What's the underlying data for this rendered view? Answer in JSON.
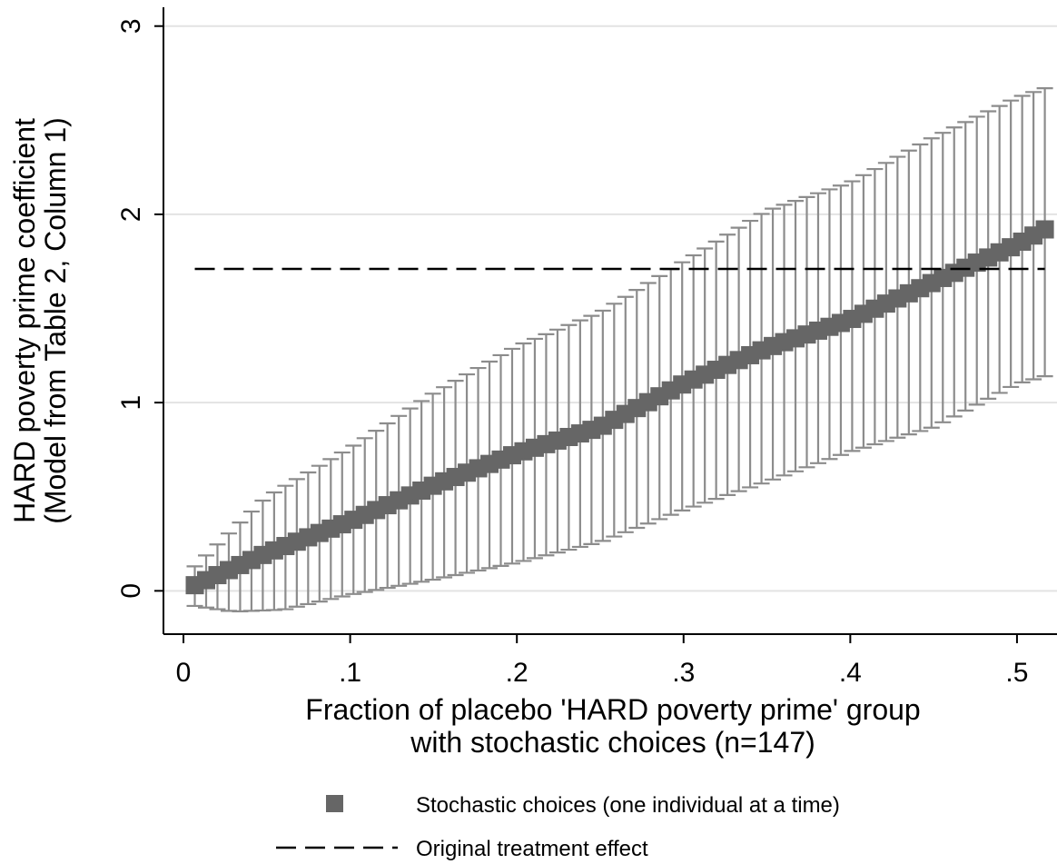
{
  "chart_data": {
    "type": "scatter",
    "xlabel": [
      "Fraction of placebo 'HARD poverty prime' group",
      "with stochastic choices (n=147)"
    ],
    "ylabel": [
      "HARD poverty prime coefficient",
      "(Model from Table 2, Column 1)"
    ],
    "xlim": [
      -0.012,
      0.524
    ],
    "ylim": [
      -0.23,
      3.1
    ],
    "x_ticks": [
      0,
      0.1,
      0.2,
      0.3,
      0.4,
      0.5
    ],
    "x_tick_labels": [
      "0",
      ".1",
      ".2",
      ".3",
      ".4",
      ".5"
    ],
    "y_ticks": [
      0,
      1,
      2,
      3
    ],
    "y_tick_labels": [
      "0",
      "1",
      "2",
      "3"
    ],
    "grid": "horizontal",
    "legend_position": "bottom",
    "n_points": 76,
    "x_start": 0.0068,
    "x_end": 0.5167,
    "series": [
      {
        "name": "Stochastic choices (one individual at a time)",
        "marker": "square",
        "color": "#666666",
        "error_bar_color": "#8c8c8c",
        "estimate_curve": [
          [
            0.0068,
            0.03
          ],
          [
            0.05,
            0.2
          ],
          [
            0.1,
            0.37
          ],
          [
            0.15,
            0.56
          ],
          [
            0.2,
            0.73
          ],
          [
            0.25,
            0.87
          ],
          [
            0.3,
            1.1
          ],
          [
            0.35,
            1.29
          ],
          [
            0.4,
            1.44
          ],
          [
            0.45,
            1.64
          ],
          [
            0.5,
            1.84
          ],
          [
            0.5167,
            1.92
          ]
        ],
        "upper_ci_curve": [
          [
            0.0068,
            0.13
          ],
          [
            0.05,
            0.5
          ],
          [
            0.1,
            0.76
          ],
          [
            0.15,
            1.05
          ],
          [
            0.2,
            1.3
          ],
          [
            0.25,
            1.48
          ],
          [
            0.3,
            1.75
          ],
          [
            0.35,
            2.02
          ],
          [
            0.4,
            2.17
          ],
          [
            0.45,
            2.41
          ],
          [
            0.5,
            2.62
          ],
          [
            0.5167,
            2.67
          ]
        ],
        "lower_ci_curve": [
          [
            0.0068,
            -0.08
          ],
          [
            0.03,
            -0.11
          ],
          [
            0.06,
            -0.1
          ],
          [
            0.1,
            -0.02
          ],
          [
            0.15,
            0.06
          ],
          [
            0.2,
            0.15
          ],
          [
            0.25,
            0.26
          ],
          [
            0.3,
            0.43
          ],
          [
            0.35,
            0.58
          ],
          [
            0.4,
            0.74
          ],
          [
            0.45,
            0.87
          ],
          [
            0.5,
            1.1
          ],
          [
            0.5167,
            1.14
          ]
        ]
      },
      {
        "name": "Original treatment effect",
        "style": "dashed",
        "color": "#000000",
        "y": 1.71,
        "x_range": [
          0.0068,
          0.5167
        ]
      }
    ]
  }
}
